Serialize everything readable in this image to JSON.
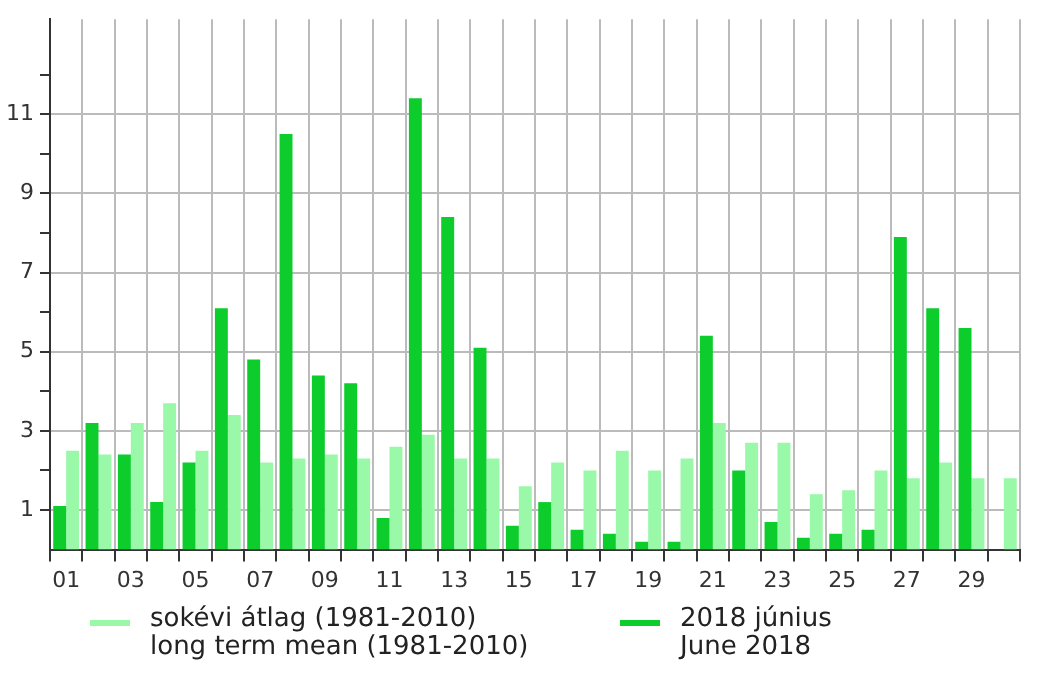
{
  "chart_data": {
    "type": "bar",
    "categories": [
      "01",
      null,
      "03",
      null,
      "05",
      null,
      "07",
      null,
      "09",
      null,
      "11",
      null,
      "13",
      null,
      "15",
      null,
      "17",
      null,
      "19",
      null,
      "21",
      null,
      "23",
      null,
      "25",
      null,
      "27",
      null,
      "29",
      null
    ],
    "series": [
      {
        "name": "2018 június\nJune 2018",
        "color": "#0ccd2c",
        "values": [
          1.1,
          3.2,
          2.4,
          1.2,
          2.2,
          6.1,
          4.8,
          10.5,
          4.4,
          4.2,
          0.8,
          11.4,
          8.4,
          5.1,
          0.6,
          1.2,
          0.5,
          0.4,
          0.2,
          0.2,
          5.4,
          2.0,
          0.7,
          0.3,
          0.4,
          0.5,
          7.9,
          6.1,
          5.6,
          null
        ]
      },
      {
        "name": "sokévi átlag (1981-2010)\nlong term mean (1981-2010)",
        "color": "#99f9a8",
        "values": [
          2.5,
          2.4,
          3.2,
          3.7,
          2.5,
          3.4,
          2.2,
          2.3,
          2.4,
          2.3,
          2.6,
          2.9,
          2.3,
          2.3,
          1.6,
          2.2,
          2.0,
          2.5,
          2.0,
          2.3,
          3.2,
          2.7,
          2.7,
          1.4,
          1.5,
          2.0,
          1.8,
          2.2,
          1.8,
          1.8
        ]
      }
    ],
    "ylim": [
      0,
      13.4
    ],
    "yticks": [
      1,
      {
        "value": 2,
        "label": null
      },
      3,
      {
        "value": 4,
        "label": null
      },
      5,
      {
        "value": 6,
        "label": null
      },
      7,
      {
        "value": 8,
        "label": null
      },
      9,
      {
        "value": 10,
        "label": null
      },
      11,
      {
        "value": 12,
        "label": null
      }
    ],
    "grid": true,
    "legend": "bottom"
  }
}
